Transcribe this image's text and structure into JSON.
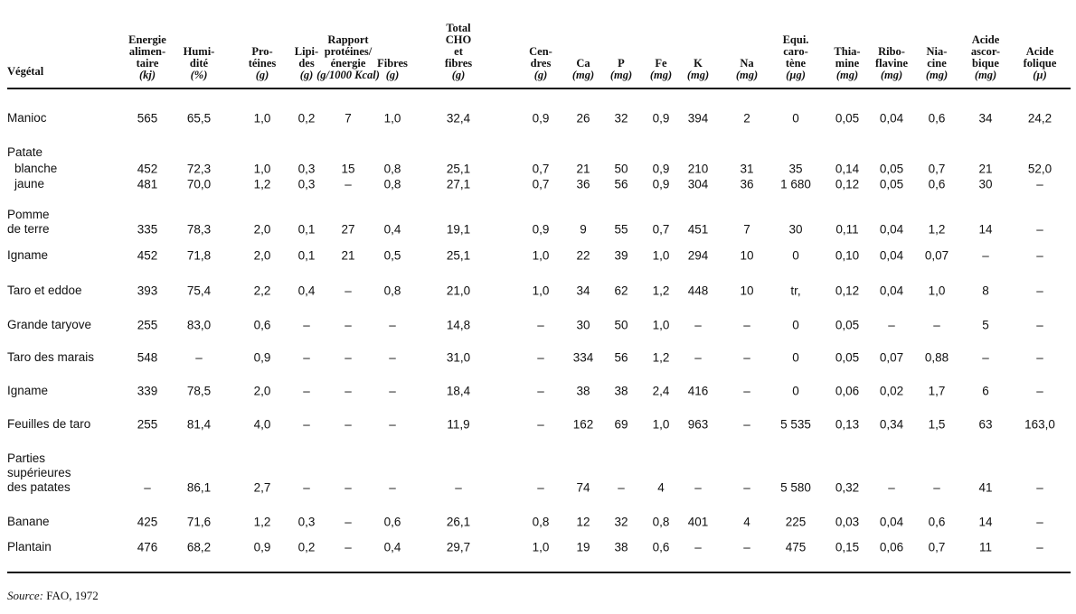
{
  "table": {
    "columns": [
      {
        "lines": [
          "Végétal"
        ],
        "unit": ""
      },
      {
        "lines": [
          "Energie",
          "alimen-",
          "taire"
        ],
        "unit": "(kj)"
      },
      {
        "lines": [
          "Humi-",
          "dité"
        ],
        "unit": "(%)"
      },
      {
        "lines": [
          "Pro-",
          "téines"
        ],
        "unit": "(g)"
      },
      {
        "lines": [
          "Lipi-",
          "des"
        ],
        "unit": "(g)"
      },
      {
        "lines": [
          "Rapport",
          "protéines/",
          "énergie"
        ],
        "unit": "(g/1000 Kcal)"
      },
      {
        "lines": [
          "Fibres"
        ],
        "unit": "(g)"
      },
      {
        "lines": [
          "Total",
          "CHO",
          "et",
          "fibres"
        ],
        "unit": "(g)"
      },
      {
        "lines": [
          "Cen-",
          "dres"
        ],
        "unit": "(g)"
      },
      {
        "lines": [
          "Ca"
        ],
        "unit": "(mg)"
      },
      {
        "lines": [
          "P"
        ],
        "unit": "(mg)"
      },
      {
        "lines": [
          "Fe"
        ],
        "unit": "(mg)"
      },
      {
        "lines": [
          "K"
        ],
        "unit": "(mg)"
      },
      {
        "lines": [
          "Na"
        ],
        "unit": "(mg)"
      },
      {
        "lines": [
          "Equi.",
          "caro-",
          "tène"
        ],
        "unit": "(µg)"
      },
      {
        "lines": [
          "Thia-",
          "mine"
        ],
        "unit": "(mg)"
      },
      {
        "lines": [
          "Ribo-",
          "flavine"
        ],
        "unit": "(mg)"
      },
      {
        "lines": [
          "Nia-",
          "cine"
        ],
        "unit": "(mg)"
      },
      {
        "lines": [
          "Acide",
          "ascor-",
          "bique"
        ],
        "unit": "(mg)"
      },
      {
        "lines": [
          "Acide",
          "folique"
        ],
        "unit": "(µ)"
      }
    ],
    "rows": [
      {
        "label": [
          "Manioc"
        ],
        "values": [
          "565",
          "65,5",
          "1,0",
          "0,2",
          "7",
          "1,0",
          "32,4",
          "0,9",
          "26",
          "32",
          "0,9",
          "394",
          "2",
          "0",
          "0,05",
          "0,04",
          "0,6",
          "34",
          "24,2"
        ]
      },
      {
        "label": [
          "Patate"
        ],
        "values": []
      },
      {
        "label": [
          "blanche"
        ],
        "indent": true,
        "values": [
          "452",
          "72,3",
          "1,0",
          "0,3",
          "15",
          "0,8",
          "25,1",
          "0,7",
          "21",
          "50",
          "0,9",
          "210",
          "31",
          "35",
          "0,14",
          "0,05",
          "0,7",
          "21",
          "52,0"
        ]
      },
      {
        "label": [
          "jaune"
        ],
        "indent": true,
        "values": [
          "481",
          "70,0",
          "1,2",
          "0,3",
          "–",
          "0,8",
          "27,1",
          "0,7",
          "36",
          "56",
          "0,9",
          "304",
          "36",
          "1 680",
          "0,12",
          "0,05",
          "0,6",
          "30",
          "–"
        ]
      },
      {
        "label": [
          "Pomme",
          "de terre"
        ],
        "values": [
          "335",
          "78,3",
          "2,0",
          "0,1",
          "27",
          "0,4",
          "19,1",
          "0,9",
          "9",
          "55",
          "0,7",
          "451",
          "7",
          "30",
          "0,11",
          "0,04",
          "1,2",
          "14",
          "–"
        ]
      },
      {
        "label": [
          "Igname"
        ],
        "values": [
          "452",
          "71,8",
          "2,0",
          "0,1",
          "21",
          "0,5",
          "25,1",
          "1,0",
          "22",
          "39",
          "1,0",
          "294",
          "10",
          "0",
          "0,10",
          "0,04",
          "0,07",
          "–",
          "–"
        ]
      },
      {
        "label": [
          "Taro et eddoe"
        ],
        "values": [
          "393",
          "75,4",
          "2,2",
          "0,4",
          "–",
          "0,8",
          "21,0",
          "1,0",
          "34",
          "62",
          "1,2",
          "448",
          "10",
          "tr,",
          "0,12",
          "0,04",
          "1,0",
          "8",
          "–"
        ]
      },
      {
        "label": [
          "Grande taryove"
        ],
        "values": [
          "255",
          "83,0",
          "0,6",
          "–",
          "–",
          "–",
          "14,8",
          "–",
          "30",
          "50",
          "1,0",
          "–",
          "–",
          "0",
          "0,05",
          "–",
          "–",
          "5",
          "–"
        ]
      },
      {
        "label": [
          "Taro des marais"
        ],
        "values": [
          "548",
          "–",
          "0,9",
          "–",
          "–",
          "–",
          "31,0",
          "–",
          "334",
          "56",
          "1,2",
          "–",
          "–",
          "0",
          "0,05",
          "0,07",
          "0,88",
          "–",
          "–"
        ]
      },
      {
        "label": [
          "Igname"
        ],
        "values": [
          "339",
          "78,5",
          "2,0",
          "–",
          "–",
          "–",
          "18,4",
          "–",
          "38",
          "38",
          "2,4",
          "416",
          "–",
          "0",
          "0,06",
          "0,02",
          "1,7",
          "6",
          "–"
        ]
      },
      {
        "label": [
          "Feuilles de taro"
        ],
        "values": [
          "255",
          "81,4",
          "4,0",
          "–",
          "–",
          "–",
          "11,9",
          "–",
          "162",
          "69",
          "1,0",
          "963",
          "–",
          "5 535",
          "0,13",
          "0,34",
          "1,5",
          "63",
          "163,0"
        ]
      },
      {
        "label": [
          "Parties",
          "supérieures",
          "des patates"
        ],
        "values": [
          "–",
          "86,1",
          "2,7",
          "–",
          "–",
          "–",
          "–",
          "–",
          "74",
          "–",
          "4",
          "–",
          "–",
          "5 580",
          "0,32",
          "–",
          "–",
          "41",
          "–"
        ]
      },
      {
        "label": [
          "Banane"
        ],
        "values": [
          "425",
          "71,6",
          "1,2",
          "0,3",
          "–",
          "0,6",
          "26,1",
          "0,8",
          "12",
          "32",
          "0,8",
          "401",
          "4",
          "225",
          "0,03",
          "0,04",
          "0,6",
          "14",
          "–"
        ]
      },
      {
        "label": [
          "Plantain"
        ],
        "values": [
          "476",
          "68,2",
          "0,9",
          "0,2",
          "–",
          "0,4",
          "29,7",
          "1,0",
          "19",
          "38",
          "0,6",
          "–",
          "–",
          "475",
          "0,15",
          "0,06",
          "0,7",
          "11",
          "–"
        ]
      }
    ]
  },
  "source": {
    "label": "Source:",
    "text": "FAO, 1972"
  }
}
